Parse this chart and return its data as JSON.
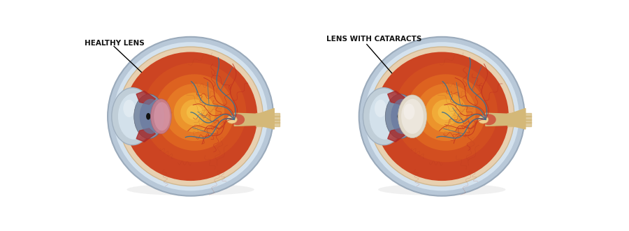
{
  "background_color": "#ffffff",
  "label1": "HEALTHY LENS",
  "label2": "LENS WITH CATARACTS",
  "font_size": 7.5,
  "font_weight": "bold"
}
